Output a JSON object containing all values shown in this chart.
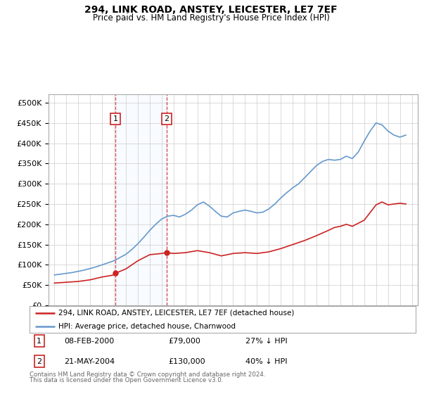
{
  "title": "294, LINK ROAD, ANSTEY, LEICESTER, LE7 7EF",
  "subtitle": "Price paid vs. HM Land Registry's House Price Index (HPI)",
  "legend_line1": "294, LINK ROAD, ANSTEY, LEICESTER, LE7 7EF (detached house)",
  "legend_line2": "HPI: Average price, detached house, Charnwood",
  "footnote1": "Contains HM Land Registry data © Crown copyright and database right 2024.",
  "footnote2": "This data is licensed under the Open Government Licence v3.0.",
  "sale1_date": "08-FEB-2000",
  "sale1_price": "£79,000",
  "sale1_hpi": "27% ↓ HPI",
  "sale1_year": 2000.1,
  "sale1_value": 79000,
  "sale2_date": "21-MAY-2004",
  "sale2_price": "£130,000",
  "sale2_hpi": "40% ↓ HPI",
  "sale2_year": 2004.4,
  "sale2_value": 130000,
  "hpi_color": "#6699cc",
  "price_color": "#cc2222",
  "background_color": "#ffffff",
  "grid_color": "#cccccc",
  "highlight_color": "#ddeeff",
  "sale_box_color": "#cc2222",
  "ylim_max": 520000,
  "ylim_min": 0,
  "years_hpi": [
    1995.0,
    1995.5,
    1996.0,
    1996.5,
    1997.0,
    1997.5,
    1998.0,
    1998.5,
    1999.0,
    1999.5,
    2000.0,
    2000.5,
    2001.0,
    2001.5,
    2002.0,
    2002.5,
    2003.0,
    2003.5,
    2004.0,
    2004.5,
    2005.0,
    2005.5,
    2006.0,
    2006.5,
    2007.0,
    2007.5,
    2008.0,
    2008.5,
    2009.0,
    2009.5,
    2010.0,
    2010.5,
    2011.0,
    2011.5,
    2012.0,
    2012.5,
    2013.0,
    2013.5,
    2014.0,
    2014.5,
    2015.0,
    2015.5,
    2016.0,
    2016.5,
    2017.0,
    2017.5,
    2018.0,
    2018.5,
    2019.0,
    2019.5,
    2020.0,
    2020.5,
    2021.0,
    2021.5,
    2022.0,
    2022.5,
    2023.0,
    2023.5,
    2024.0,
    2024.5
  ],
  "hpi_values": [
    75000,
    77000,
    79000,
    81000,
    84000,
    87000,
    91000,
    95000,
    100000,
    105000,
    110000,
    118000,
    126000,
    138000,
    152000,
    168000,
    185000,
    200000,
    213000,
    220000,
    222000,
    218000,
    225000,
    235000,
    248000,
    255000,
    245000,
    232000,
    220000,
    218000,
    228000,
    232000,
    235000,
    232000,
    228000,
    230000,
    238000,
    250000,
    265000,
    278000,
    290000,
    300000,
    315000,
    330000,
    345000,
    355000,
    360000,
    358000,
    360000,
    368000,
    362000,
    378000,
    405000,
    430000,
    450000,
    445000,
    430000,
    420000,
    415000,
    420000
  ],
  "years_price": [
    1995.0,
    1996.0,
    1997.0,
    1998.0,
    1999.0,
    2000.0,
    2000.1,
    2001.0,
    2002.0,
    2003.0,
    2004.0,
    2004.4,
    2005.0,
    2006.0,
    2007.0,
    2008.0,
    2009.0,
    2010.0,
    2011.0,
    2012.0,
    2013.0,
    2014.0,
    2015.0,
    2016.0,
    2017.0,
    2018.0,
    2018.5,
    2019.0,
    2019.5,
    2020.0,
    2021.0,
    2022.0,
    2022.5,
    2023.0,
    2024.0,
    2024.5
  ],
  "price_values": [
    55000,
    57000,
    59000,
    63000,
    70000,
    75000,
    79000,
    90000,
    110000,
    125000,
    128000,
    130000,
    128000,
    130000,
    135000,
    130000,
    122000,
    128000,
    130000,
    128000,
    132000,
    140000,
    150000,
    160000,
    172000,
    185000,
    192000,
    195000,
    200000,
    195000,
    210000,
    248000,
    255000,
    248000,
    252000,
    250000
  ]
}
